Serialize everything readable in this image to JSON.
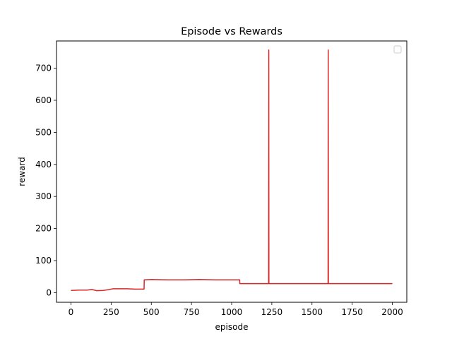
{
  "chart_data": {
    "type": "line",
    "title": "Episode vs Rewards",
    "xlabel": "episode",
    "ylabel": "reward",
    "xlim": [
      -90,
      2090
    ],
    "ylim": [
      -30,
      785
    ],
    "xticks": [
      0,
      250,
      500,
      750,
      1000,
      1250,
      1500,
      1750,
      2000
    ],
    "yticks": [
      0,
      100,
      200,
      300,
      400,
      500,
      600,
      700
    ],
    "legend": {
      "position": "top-right",
      "entries": []
    },
    "grid": false,
    "color": "#d62728",
    "series": [
      {
        "x": [
          0,
          50,
          100,
          130,
          160,
          200,
          230,
          260,
          300,
          350,
          400,
          455,
          456,
          500,
          600,
          700,
          800,
          900,
          1000,
          1050,
          1051,
          1230,
          1231,
          1232,
          1233,
          1600,
          1601,
          1602,
          1603,
          2000
        ],
        "y": [
          7,
          8,
          8,
          10,
          6,
          7,
          9,
          12,
          12,
          12,
          11,
          11,
          40,
          41,
          40,
          40,
          41,
          40,
          40,
          40,
          28,
          28,
          757,
          28,
          28,
          28,
          757,
          28,
          28,
          28
        ]
      }
    ]
  }
}
